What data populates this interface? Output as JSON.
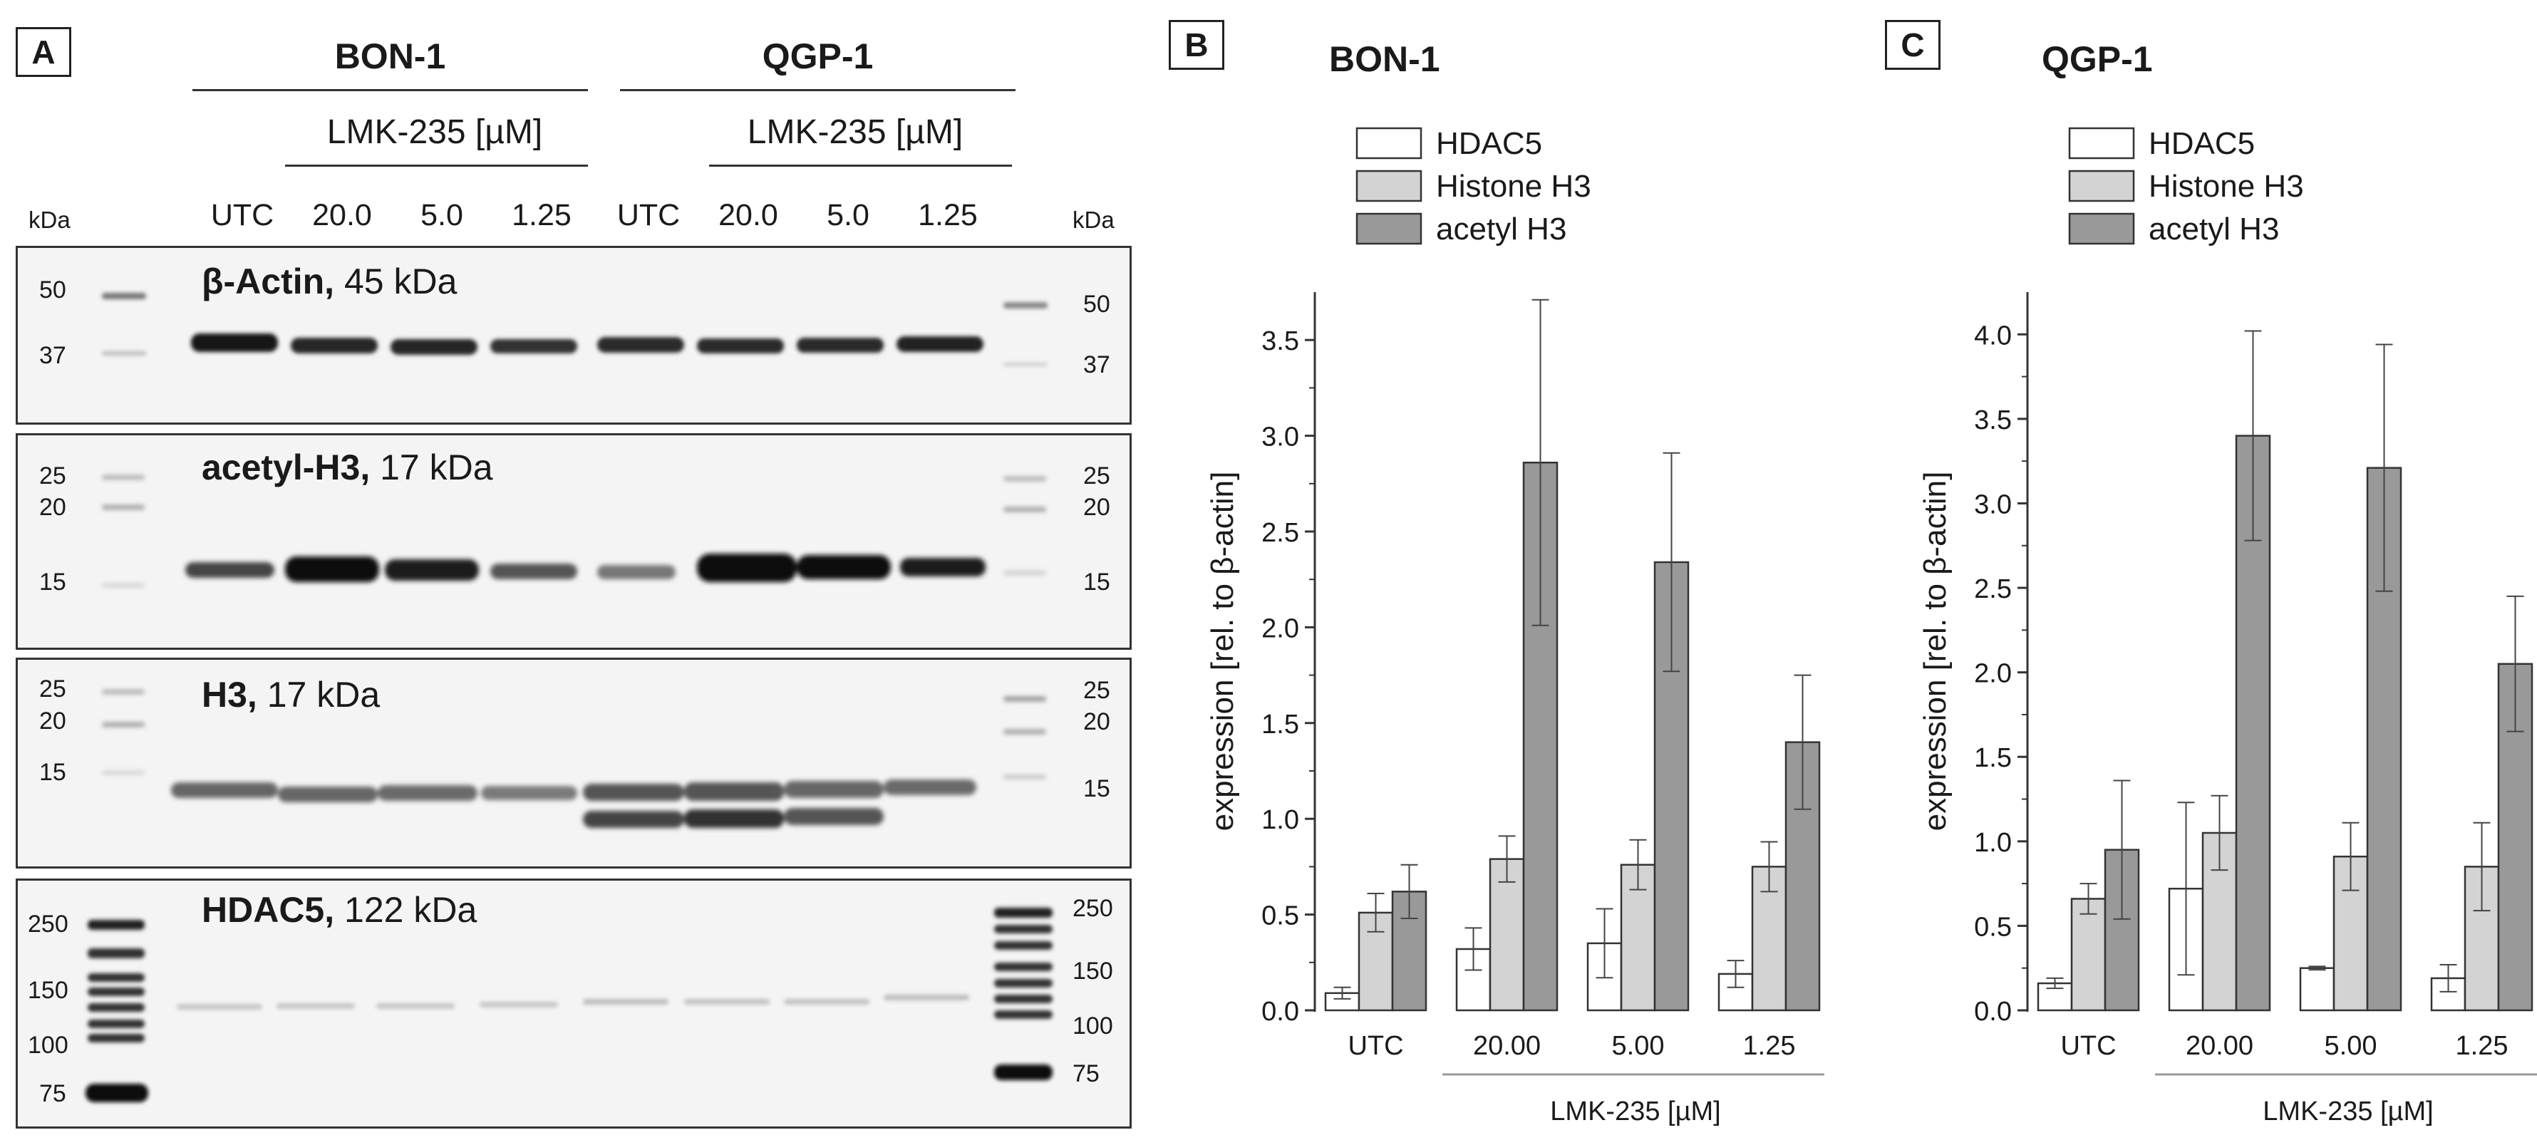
{
  "panels": {
    "a": "A",
    "b": "B",
    "c": "C"
  },
  "blot": {
    "cell_lines": [
      "BON-1",
      "QGP-1"
    ],
    "treatment_label": "LMK-235 [µM]",
    "lanes": [
      "UTC",
      "20.0",
      "5.0",
      "1.25",
      "UTC",
      "20.0",
      "5.0",
      "1.25"
    ],
    "kda_left": "kDa",
    "kda_right": "kDa",
    "rows": [
      {
        "name": "β-Actin,",
        "size": " 45 kDa",
        "ladder_left": [
          "50",
          "37"
        ],
        "ladder_right": [
          "50",
          "37"
        ]
      },
      {
        "name": "acetyl-H3,",
        "size": " 17 kDa",
        "ladder_left": [
          "25",
          "20",
          "15"
        ],
        "ladder_right": [
          "25",
          "20",
          "15"
        ]
      },
      {
        "name": "H3,",
        "size": " 17 kDa",
        "ladder_left": [
          "25",
          "20",
          "15"
        ],
        "ladder_right": [
          "25",
          "20",
          "15"
        ]
      },
      {
        "name": "HDAC5,",
        "size": " 122 kDa",
        "ladder_left": [
          "250",
          "150",
          "100",
          "75"
        ],
        "ladder_right": [
          "250",
          "150",
          "100",
          "75"
        ]
      }
    ]
  },
  "chart_data": [
    {
      "type": "bar",
      "title": "BON-1",
      "categories": [
        "UTC",
        "20.00",
        "5.00",
        "1.25"
      ],
      "group_label": "LMK-235 [µM]",
      "ylabel": "expression [rel. to β-actin]",
      "ylim": [
        0,
        3.75
      ],
      "yticks": [
        "0.0",
        "0.5",
        "1.0",
        "1.5",
        "2.0",
        "2.5",
        "3.0",
        "3.5"
      ],
      "series": [
        {
          "name": "HDAC5",
          "color": "#ffffff",
          "values": [
            0.09,
            0.32,
            0.35,
            0.19
          ],
          "errors": [
            0.03,
            0.11,
            0.18,
            0.07
          ]
        },
        {
          "name": "Histone H3",
          "color": "#d3d3d3",
          "values": [
            0.51,
            0.79,
            0.76,
            0.75
          ],
          "errors": [
            0.1,
            0.12,
            0.13,
            0.13
          ]
        },
        {
          "name": "acetyl H3",
          "color": "#999999",
          "values": [
            0.62,
            2.86,
            2.34,
            1.4
          ],
          "errors": [
            0.14,
            0.85,
            0.57,
            0.35
          ]
        }
      ]
    },
    {
      "type": "bar",
      "title": "QGP-1",
      "categories": [
        "UTC",
        "20.00",
        "5.00",
        "1.25"
      ],
      "group_label": "LMK-235 [µM]",
      "ylabel": "expression [rel. to β-actin]",
      "ylim": [
        0,
        4.25
      ],
      "yticks": [
        "0.0",
        "0.5",
        "1.0",
        "1.5",
        "2.0",
        "2.5",
        "3.0",
        "3.5",
        "4.0"
      ],
      "series": [
        {
          "name": "HDAC5",
          "color": "#ffffff",
          "values": [
            0.16,
            0.72,
            0.25,
            0.19
          ],
          "errors": [
            0.03,
            0.51,
            0.01,
            0.08
          ]
        },
        {
          "name": "Histone H3",
          "color": "#d3d3d3",
          "values": [
            0.66,
            1.05,
            0.91,
            0.85
          ],
          "errors": [
            0.09,
            0.22,
            0.2,
            0.26
          ]
        },
        {
          "name": "acetyl H3",
          "color": "#999999",
          "values": [
            0.95,
            3.4,
            3.21,
            2.05
          ],
          "errors": [
            0.41,
            0.62,
            0.73,
            0.4
          ]
        }
      ]
    }
  ]
}
